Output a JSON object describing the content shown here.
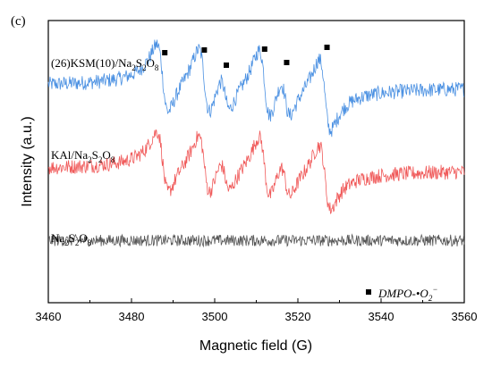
{
  "chart_data": {
    "type": "line",
    "panel_label": "(c)",
    "xlabel": "Magnetic field (G)",
    "ylabel": "Intensity (a.u.)",
    "xlim": [
      3460,
      3560
    ],
    "x_ticks": [
      "3460",
      "3480",
      "3500",
      "3520",
      "3540",
      "3560"
    ],
    "yticks_shown": false,
    "grid": false,
    "series": [
      {
        "name": "(26)KSM(10)/Na2S2O8",
        "label_text": "(26)KSM(10)/Na",
        "color": "#4a90e2",
        "baseline": 3.0,
        "noise": 0.18,
        "amplitude": 1.0,
        "peaks": [
          {
            "x": 3487.5,
            "width": 1.8,
            "amp": 1.0
          },
          {
            "x": 3497.5,
            "width": 1.8,
            "amp": 1.0
          },
          {
            "x": 3502.5,
            "width": 1.6,
            "amp": 0.55
          },
          {
            "x": 3512.0,
            "width": 1.8,
            "amp": 1.05
          },
          {
            "x": 3517.0,
            "width": 1.6,
            "amp": 0.6
          },
          {
            "x": 3526.5,
            "width": 1.8,
            "amp": 1.05
          }
        ]
      },
      {
        "name": "KAl/Na2S2O8",
        "label_text": "KAl/Na",
        "color": "#f05a5a",
        "baseline": 1.0,
        "noise": 0.18,
        "amplitude": 0.9,
        "peaks": [
          {
            "x": 3487.5,
            "width": 1.8,
            "amp": 1.0
          },
          {
            "x": 3497.5,
            "width": 1.8,
            "amp": 1.0
          },
          {
            "x": 3502.5,
            "width": 1.6,
            "amp": 0.55
          },
          {
            "x": 3512.0,
            "width": 1.8,
            "amp": 1.05
          },
          {
            "x": 3517.0,
            "width": 1.6,
            "amp": 0.6
          },
          {
            "x": 3526.5,
            "width": 1.8,
            "amp": 1.05
          }
        ]
      },
      {
        "name": "Na2S2O8",
        "label_text": "Na",
        "color": "#555555",
        "baseline": -0.7,
        "noise": 0.14,
        "amplitude": 0.0,
        "peaks": []
      }
    ],
    "marker_positions_x": [
      3488.0,
      3497.5,
      3502.8,
      3512.0,
      3517.3,
      3527.0
    ],
    "marker_legend_label": "DMPO-•O",
    "marker_symbol": "square",
    "y_range": [
      -2.2,
      4.6
    ]
  }
}
